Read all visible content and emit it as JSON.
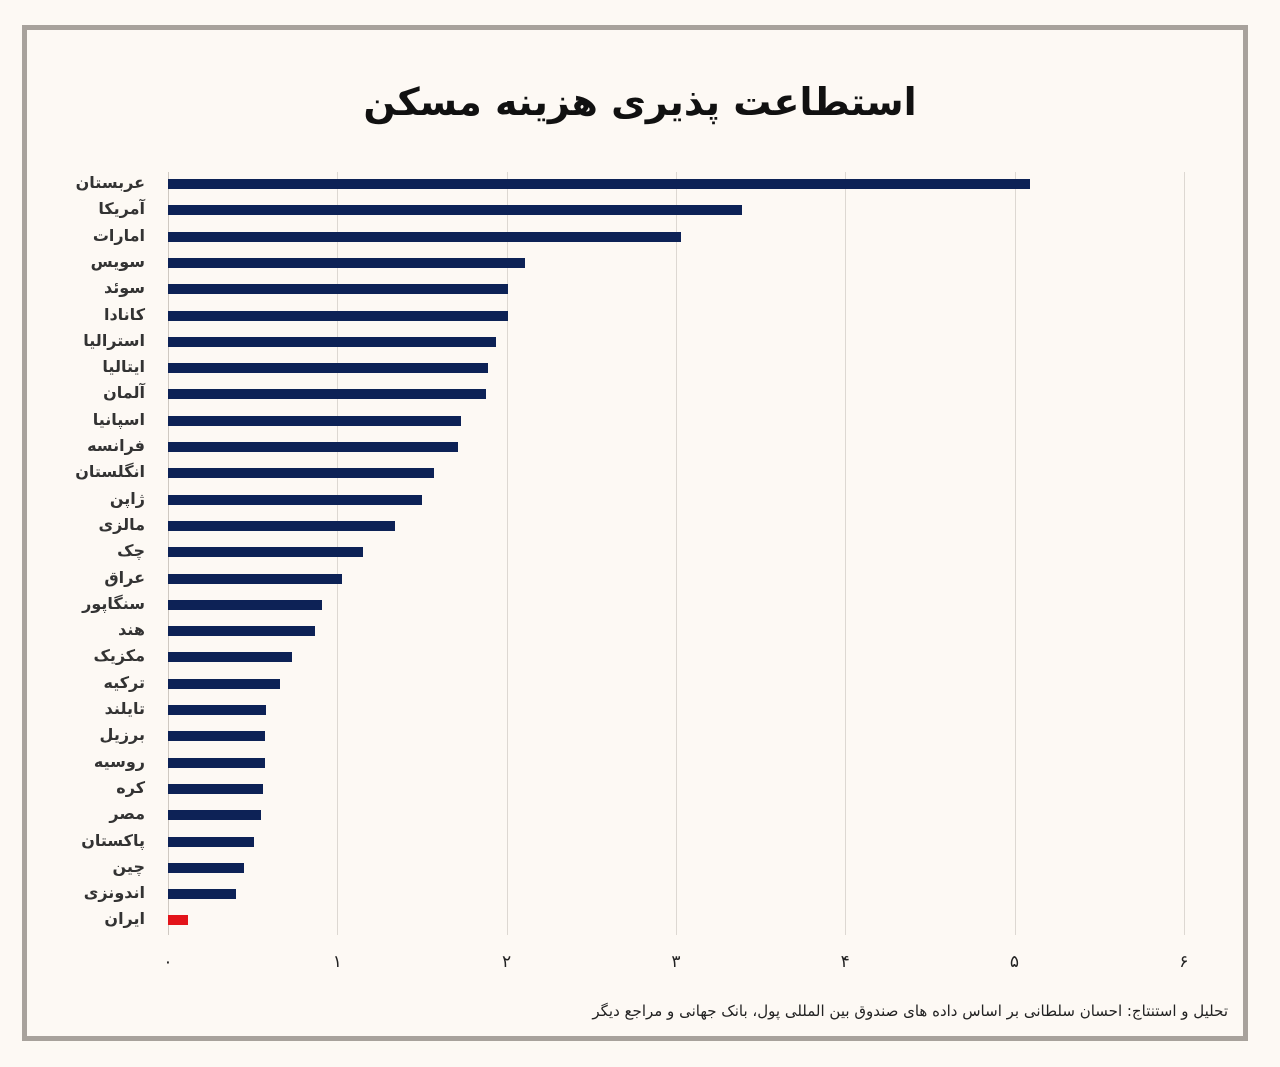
{
  "title": "استطاعت پذیری هزینه مسکن",
  "source": "تحلیل و استنتاج: احسان سلطانی بر اساس داده های صندوق بین المللی پول، بانک جهانی و مراجع دیگر",
  "colors": {
    "bar": "#0d2256",
    "highlight": "#e3141a",
    "background": "#fdf9f4",
    "frame": "#a8a29c"
  },
  "axis": {
    "ticks": [
      "۰",
      "۱",
      "۲",
      "۳",
      "۴",
      "۵",
      "۶"
    ]
  },
  "chart_data": {
    "type": "bar",
    "orientation": "horizontal",
    "title": "استطاعت پذیری هزینه مسکن",
    "xlabel": "",
    "ylabel": "",
    "xlim": [
      0,
      6
    ],
    "grid": true,
    "categories": [
      "عربستان",
      "آمریکا",
      "امارات",
      "سویس",
      "سوئد",
      "کانادا",
      "استرالیا",
      "ایتالیا",
      "آلمان",
      "اسپانیا",
      "فرانسه",
      "انگلستان",
      "ژاپن",
      "مالزی",
      "چک",
      "عراق",
      "سنگاپور",
      "هند",
      "مکزیک",
      "ترکیه",
      "تایلند",
      "برزیل",
      "روسیه",
      "کره",
      "مصر",
      "پاکستان",
      "چین",
      "اندونزی",
      "ایران"
    ],
    "values": [
      5.09,
      3.39,
      3.03,
      2.11,
      2.01,
      2.01,
      1.94,
      1.89,
      1.88,
      1.73,
      1.71,
      1.57,
      1.5,
      1.34,
      1.15,
      1.03,
      0.91,
      0.87,
      0.73,
      0.66,
      0.58,
      0.57,
      0.57,
      0.56,
      0.55,
      0.51,
      0.45,
      0.4,
      0.12
    ],
    "highlight": "ایران",
    "annotations": [
      "تحلیل و استنتاج: احسان سلطانی بر اساس داده های صندوق بین المللی پول، بانک جهانی و مراجع دیگر"
    ]
  }
}
